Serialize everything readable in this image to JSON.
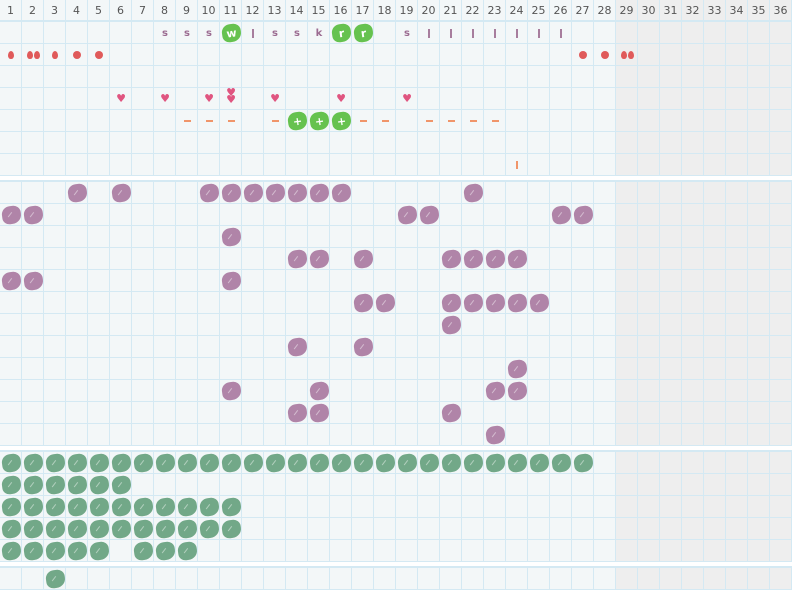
{
  "columns": [
    "1",
    "2",
    "3",
    "4",
    "5",
    "6",
    "7",
    "8",
    "9",
    "10",
    "11",
    "12",
    "13",
    "14",
    "15",
    "16",
    "17",
    "18",
    "19",
    "20",
    "21",
    "22",
    "23",
    "24",
    "25",
    "26",
    "27",
    "28",
    "29",
    "30",
    "31",
    "32",
    "33",
    "34",
    "35",
    "36"
  ],
  "shaded_from_column": 29,
  "colors": {
    "grid_bg": "#f3f7f8",
    "grid_line": "#d4e9f3",
    "shaded": "#eeeeee",
    "purple": "#b084a8",
    "sage": "#72a888",
    "lime": "#66c24f",
    "red": "#e05a5a",
    "heart": "#e05580",
    "orange": "#f0956a"
  },
  "sections": [
    {
      "name": "symptoms",
      "rows": [
        [
          {
            "col": 8,
            "icon": "letter",
            "text": "s"
          },
          {
            "col": 9,
            "icon": "letter",
            "text": "s"
          },
          {
            "col": 10,
            "icon": "letter",
            "text": "s"
          },
          {
            "col": 11,
            "icon": "lime-blob",
            "text": "w"
          },
          {
            "col": 12,
            "icon": "bar"
          },
          {
            "col": 13,
            "icon": "letter",
            "text": "s"
          },
          {
            "col": 14,
            "icon": "letter",
            "text": "s"
          },
          {
            "col": 15,
            "icon": "letter",
            "text": "k"
          },
          {
            "col": 16,
            "icon": "lime-blob",
            "text": "r"
          },
          {
            "col": 17,
            "icon": "lime-blob",
            "text": "r"
          },
          {
            "col": 19,
            "icon": "letter",
            "text": "s"
          },
          {
            "col": 20,
            "icon": "bar"
          },
          {
            "col": 21,
            "icon": "bar"
          },
          {
            "col": 22,
            "icon": "bar"
          },
          {
            "col": 23,
            "icon": "bar"
          },
          {
            "col": 24,
            "icon": "bar"
          },
          {
            "col": 25,
            "icon": "bar"
          },
          {
            "col": 26,
            "icon": "bar"
          }
        ],
        [
          {
            "col": 1,
            "icon": "drop"
          },
          {
            "col": 2,
            "icon": "drops"
          },
          {
            "col": 3,
            "icon": "drop"
          },
          {
            "col": 4,
            "icon": "dot"
          },
          {
            "col": 5,
            "icon": "dot"
          },
          {
            "col": 27,
            "icon": "dot"
          },
          {
            "col": 28,
            "icon": "dot"
          },
          {
            "col": 29,
            "icon": "drops"
          }
        ],
        [],
        [
          {
            "col": 6,
            "icon": "heart"
          },
          {
            "col": 8,
            "icon": "heart"
          },
          {
            "col": 10,
            "icon": "heart"
          },
          {
            "col": 11,
            "icon": "hearts"
          },
          {
            "col": 13,
            "icon": "heart"
          },
          {
            "col": 16,
            "icon": "heart"
          },
          {
            "col": 19,
            "icon": "heart"
          }
        ],
        [
          {
            "col": 9,
            "icon": "dash"
          },
          {
            "col": 10,
            "icon": "dash"
          },
          {
            "col": 11,
            "icon": "dash"
          },
          {
            "col": 13,
            "icon": "dash"
          },
          {
            "col": 14,
            "icon": "lime-blob",
            "text": "+"
          },
          {
            "col": 15,
            "icon": "lime-blob",
            "text": "+"
          },
          {
            "col": 16,
            "icon": "lime-blob",
            "text": "+"
          },
          {
            "col": 17,
            "icon": "dash"
          },
          {
            "col": 18,
            "icon": "dash"
          },
          {
            "col": 20,
            "icon": "dash"
          },
          {
            "col": 21,
            "icon": "dash"
          },
          {
            "col": 22,
            "icon": "dash"
          },
          {
            "col": 23,
            "icon": "dash"
          }
        ],
        [],
        [
          {
            "col": 24,
            "icon": "orange-bar"
          }
        ]
      ]
    },
    {
      "name": "purple",
      "rows": [
        [
          4,
          6,
          10,
          11,
          12,
          13,
          14,
          15,
          16,
          22
        ],
        [
          1,
          2,
          19,
          20,
          26,
          27
        ],
        [
          11
        ],
        [
          14,
          15,
          17,
          21,
          22,
          23,
          24
        ],
        [
          1,
          2,
          11
        ],
        [
          17,
          18,
          21,
          22,
          23,
          24,
          25
        ],
        [
          21
        ],
        [
          14,
          17
        ],
        [
          24
        ],
        [
          11,
          15,
          23,
          24
        ],
        [
          14,
          15,
          21
        ],
        [
          23
        ]
      ]
    },
    {
      "name": "green",
      "rows": [
        [
          1,
          2,
          3,
          4,
          5,
          6,
          7,
          8,
          9,
          10,
          11,
          12,
          13,
          14,
          15,
          16,
          17,
          18,
          19,
          20,
          21,
          22,
          23,
          24,
          25,
          26,
          27
        ],
        [
          1,
          2,
          3,
          4,
          5,
          6
        ],
        [
          1,
          2,
          3,
          4,
          5,
          6,
          7,
          8,
          9,
          10,
          11
        ],
        [
          1,
          2,
          3,
          4,
          5,
          6,
          7,
          8,
          9,
          10,
          11
        ],
        [
          1,
          2,
          3,
          4,
          5,
          7,
          8,
          9
        ]
      ]
    },
    {
      "name": "green-extra",
      "rows": [
        [
          3
        ]
      ]
    }
  ]
}
